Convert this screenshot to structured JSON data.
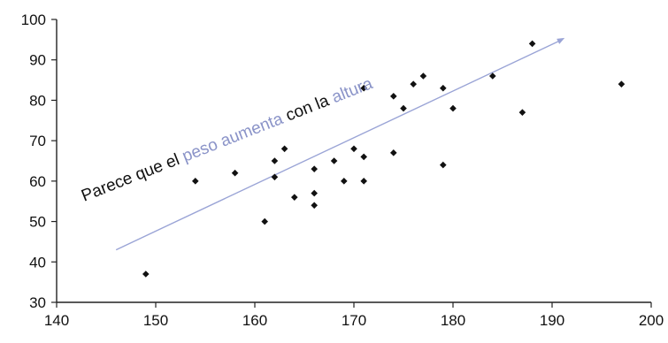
{
  "chart_data": {
    "type": "scatter",
    "title": "",
    "xlabel": "",
    "ylabel": "",
    "xlim": [
      140,
      200
    ],
    "ylim": [
      30,
      100
    ],
    "x_ticks": [
      140,
      150,
      160,
      170,
      180,
      190,
      200
    ],
    "y_ticks": [
      30,
      40,
      50,
      60,
      70,
      80,
      90,
      100
    ],
    "grid": false,
    "legend": "none",
    "point_color": "#111111",
    "trend_color": "#9aa4d6",
    "points": [
      {
        "x": 149,
        "y": 37
      },
      {
        "x": 154,
        "y": 60
      },
      {
        "x": 158,
        "y": 62
      },
      {
        "x": 161,
        "y": 50
      },
      {
        "x": 162,
        "y": 61
      },
      {
        "x": 162,
        "y": 65
      },
      {
        "x": 163,
        "y": 68
      },
      {
        "x": 164,
        "y": 56
      },
      {
        "x": 166,
        "y": 63
      },
      {
        "x": 166,
        "y": 57
      },
      {
        "x": 166,
        "y": 54
      },
      {
        "x": 168,
        "y": 65
      },
      {
        "x": 169,
        "y": 60
      },
      {
        "x": 170,
        "y": 68
      },
      {
        "x": 171,
        "y": 66
      },
      {
        "x": 171,
        "y": 60
      },
      {
        "x": 171,
        "y": 83
      },
      {
        "x": 174,
        "y": 81
      },
      {
        "x": 174,
        "y": 67
      },
      {
        "x": 175,
        "y": 78
      },
      {
        "x": 176,
        "y": 84
      },
      {
        "x": 177,
        "y": 86
      },
      {
        "x": 179,
        "y": 83
      },
      {
        "x": 179,
        "y": 64
      },
      {
        "x": 180,
        "y": 78
      },
      {
        "x": 184,
        "y": 86
      },
      {
        "x": 187,
        "y": 77
      },
      {
        "x": 188,
        "y": 94
      },
      {
        "x": 197,
        "y": 84
      }
    ],
    "trend_line": {
      "x": [
        146,
        191
      ],
      "y": [
        43,
        95
      ]
    },
    "annotation": {
      "segments": [
        {
          "text": "Parece que el ",
          "color": "#111111"
        },
        {
          "text": "peso aumenta",
          "color": "#8a93c8"
        },
        {
          "text": " con la ",
          "color": "#111111"
        },
        {
          "text": "altura",
          "color": "#8a93c8"
        }
      ]
    }
  }
}
